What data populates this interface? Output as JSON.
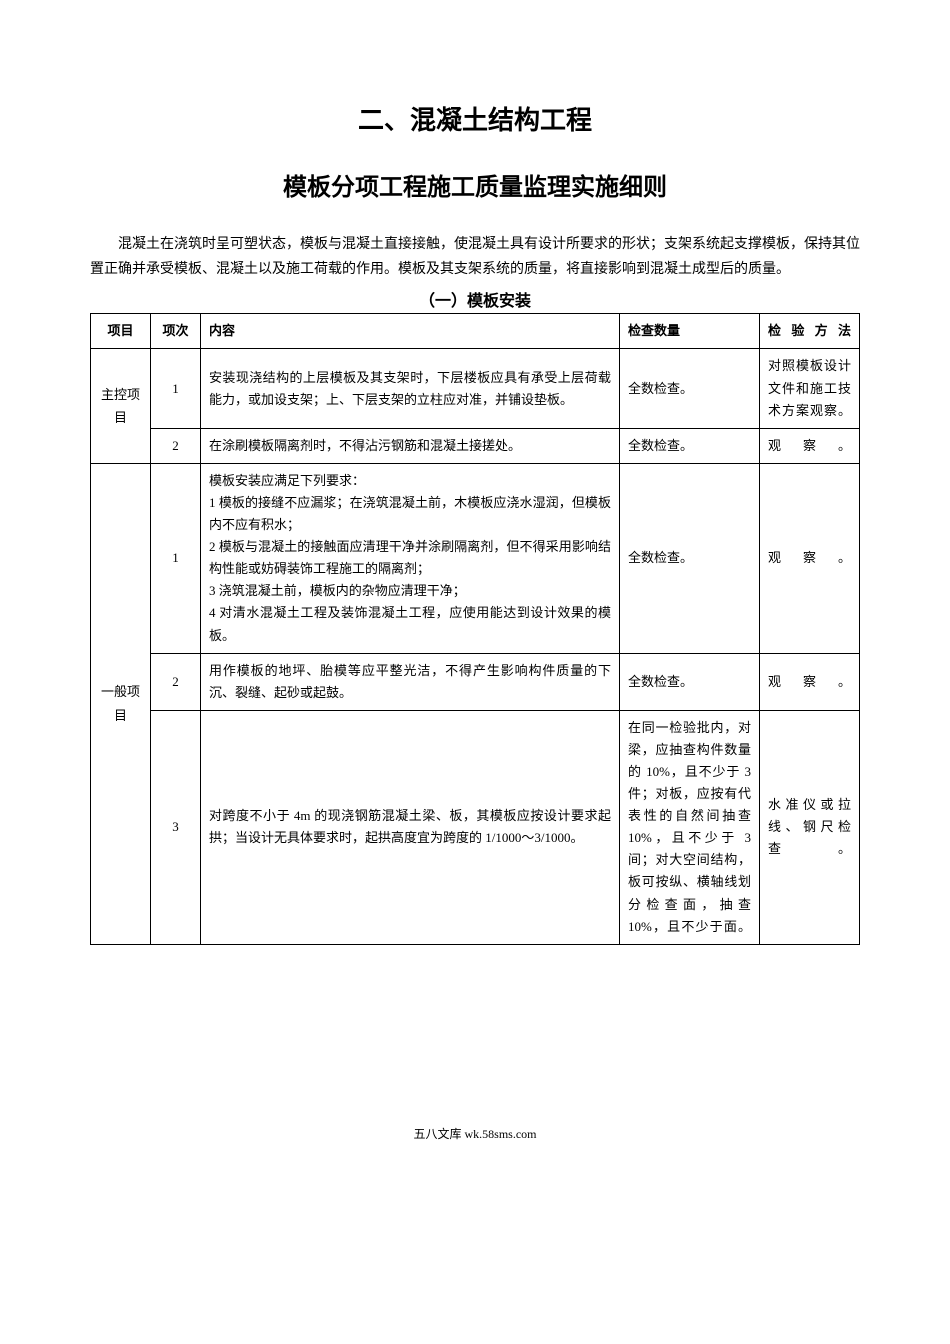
{
  "titles": {
    "main": "二、混凝土结构工程",
    "sub": "模板分项工程施工质量监理实施细则"
  },
  "intro": "混凝土在浇筑时呈可塑状态，模板与混凝土直接接触，使混凝土具有设计所要求的形状；支架系统起支撑模板，保持其位置正确并承受模板、混凝土以及施工荷载的作用。模板及其支架系统的质量，将直接影响到混凝土成型后的质量。",
  "section_title": "（一）模板安装",
  "headers": {
    "project": "项目",
    "seq": "项次",
    "content": "内容",
    "quantity": "检查数量",
    "method": "检验方法"
  },
  "categories": {
    "main_control": "主控项目",
    "general": "一般项目"
  },
  "rows": {
    "r1": {
      "seq": "1",
      "content": "安装现浇结构的上层模板及其支架时，下层楼板应具有承受上层荷载能力，或加设支架；上、下层支架的立柱应对准，并铺设垫板。",
      "quantity": "全数检查。",
      "method": "对照模板设计文件和施工技术方案观察。"
    },
    "r2": {
      "seq": "2",
      "content": "在涂刷模板隔离剂时，不得沾污钢筋和混凝土接搓处。",
      "quantity": "全数检查。",
      "method": "观察。"
    },
    "r3": {
      "seq": "1",
      "content": "模板安装应满足下列要求：\n1 模板的接缝不应漏浆；在浇筑混凝土前，木模板应浇水湿润，但模板内不应有积水；\n2 模板与混凝土的接触面应清理干净并涂刷隔离剂，但不得采用影响结构性能或妨碍装饰工程施工的隔离剂；\n3 浇筑混凝土前，模板内的杂物应清理干净；\n4 对清水混凝土工程及装饰混凝土工程，应使用能达到设计效果的模板。",
      "quantity": "全数检查。",
      "method": "观察。"
    },
    "r4": {
      "seq": "2",
      "content": "用作模板的地坪、胎模等应平整光洁，不得产生影响构件质量的下沉、裂缝、起砂或起鼓。",
      "quantity": "全数检查。",
      "method": "观察。"
    },
    "r5": {
      "seq": "3",
      "content": "对跨度不小于 4m 的现浇钢筋混凝土梁、板，其模板应按设计要求起拱；当设计无具体要求时，起拱高度宜为跨度的 1/1000～3/1000。",
      "quantity": "在同一检验批内，对梁，应抽查构件数量的 10%，且不少于 3 件；对板，应按有代表性的自然间抽查 10%，且不少于 3 间；对大空间结构，板可按纵、横轴线划分检查面，抽查 10%，且不少于面。",
      "method": "水准仪或拉线、钢尺检查。"
    }
  },
  "footer": "五八文库 wk.58sms.com"
}
